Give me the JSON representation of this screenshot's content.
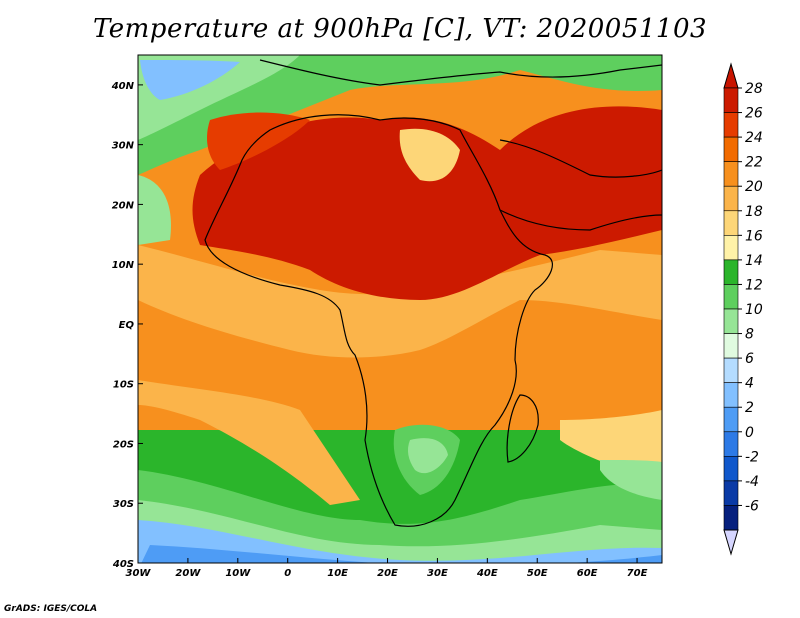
{
  "title": "Temperature at 900hPa [C], VT: 2020051103",
  "credit": "GrADS: IGES/COLA",
  "map": {
    "lon_range": [
      -30,
      75
    ],
    "lat_range": [
      -40,
      45
    ],
    "lon_ticks": [
      {
        "v": -30,
        "t": "30W"
      },
      {
        "v": -20,
        "t": "20W"
      },
      {
        "v": -10,
        "t": "10W"
      },
      {
        "v": 0,
        "t": "0"
      },
      {
        "v": 10,
        "t": "10E"
      },
      {
        "v": 20,
        "t": "20E"
      },
      {
        "v": 30,
        "t": "30E"
      },
      {
        "v": 40,
        "t": "40E"
      },
      {
        "v": 50,
        "t": "50E"
      },
      {
        "v": 60,
        "t": "60E"
      },
      {
        "v": 70,
        "t": "70E"
      }
    ],
    "lat_ticks": [
      {
        "v": 40,
        "t": "40N"
      },
      {
        "v": 30,
        "t": "30N"
      },
      {
        "v": 20,
        "t": "20N"
      },
      {
        "v": 10,
        "t": "10N"
      },
      {
        "v": 0,
        "t": "EQ"
      },
      {
        "v": -10,
        "t": "10S"
      },
      {
        "v": -20,
        "t": "20S"
      },
      {
        "v": -30,
        "t": "30S"
      },
      {
        "v": -40,
        "t": "40S"
      }
    ]
  },
  "colorbar": {
    "labels": [
      "28",
      "26",
      "24",
      "22",
      "20",
      "18",
      "16",
      "14",
      "12",
      "10",
      "8",
      "6",
      "4",
      "2",
      "0",
      "-2",
      "-4",
      "-6"
    ],
    "colors": [
      "#cc1a00",
      "#e63c00",
      "#f26b00",
      "#f7901e",
      "#fbb44a",
      "#fdd678",
      "#fff2a8",
      "#2bb52b",
      "#5ecf5e",
      "#96e596",
      "#e0fbe0",
      "#b4dcff",
      "#82c0ff",
      "#4e9cf5",
      "#2d7ae6",
      "#1058cc",
      "#0a3aa6",
      "#06207e"
    ],
    "over_color": "#c81400",
    "under_color": "#d6d6ff"
  }
}
